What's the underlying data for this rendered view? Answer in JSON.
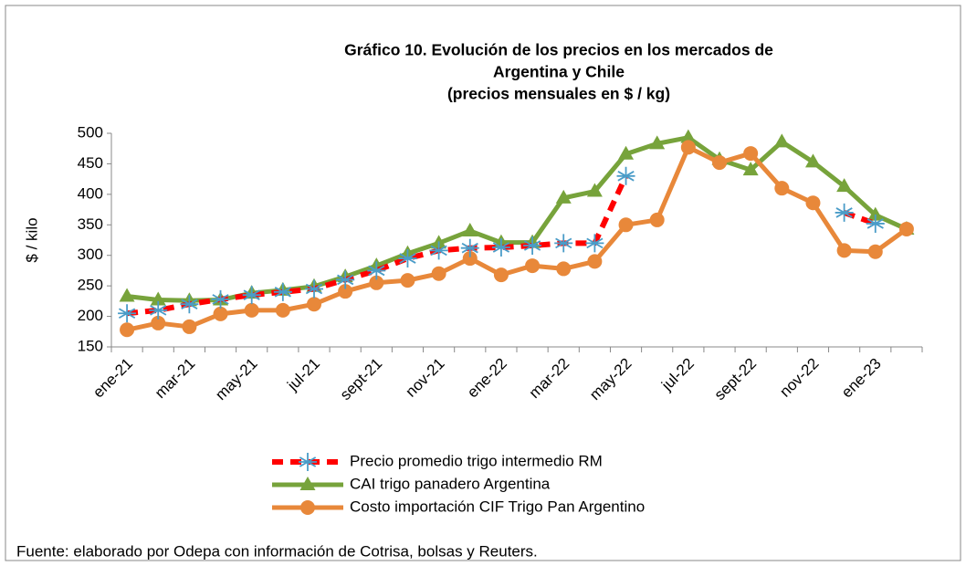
{
  "chart_data": {
    "type": "line",
    "title": [
      "Gráfico 10. Evolución de los precios en los mercados de",
      "Argentina y Chile",
      "(precios mensuales en $ / kg)"
    ],
    "y_label": "$ / kilo",
    "source": "Fuente: elaborado por Odepa con información de Cotrisa, bolsas y Reuters.",
    "categories": [
      "ene-21",
      null,
      "mar-21",
      null,
      "may-21",
      null,
      "jul-21",
      null,
      "sept-21",
      null,
      "nov-21",
      null,
      "ene-22",
      null,
      "mar-22",
      null,
      "may-22",
      null,
      "jul-22",
      null,
      "sept-22",
      null,
      "nov-22",
      null,
      "ene-23",
      null
    ],
    "ylim": [
      150,
      500
    ],
    "yticks": [
      150,
      200,
      250,
      300,
      350,
      400,
      450,
      500
    ],
    "grid": false,
    "legend": "bottom",
    "series": [
      {
        "name": "Precio promedio trigo intermedio RM",
        "color": "#ff0000",
        "marker_color": "#4a9cc8",
        "marker": "star",
        "dash": true,
        "values": [
          205,
          210,
          220,
          228,
          235,
          240,
          245,
          260,
          275,
          295,
          308,
          312,
          313,
          316,
          320,
          320,
          430,
          null,
          null,
          null,
          null,
          null,
          null,
          370,
          352,
          null
        ]
      },
      {
        "name": "CAI trigo panadero Argentina",
        "color": "#77a33b",
        "marker_color": "#77a33b",
        "marker": "triangle",
        "dash": false,
        "values": [
          233,
          227,
          226,
          227,
          238,
          243,
          249,
          265,
          283,
          303,
          320,
          340,
          321,
          321,
          394,
          405,
          466,
          483,
          493,
          457,
          440,
          486,
          453,
          413,
          366,
          343
        ]
      },
      {
        "name": "Costo importación CIF Trigo Pan Argentino",
        "color": "#e8883a",
        "marker_color": "#e8883a",
        "marker": "circle",
        "dash": false,
        "values": [
          178,
          189,
          183,
          204,
          210,
          210,
          220,
          241,
          255,
          259,
          270,
          295,
          268,
          283,
          278,
          290,
          350,
          358,
          477,
          452,
          467,
          410,
          386,
          308,
          306,
          343
        ]
      }
    ]
  }
}
